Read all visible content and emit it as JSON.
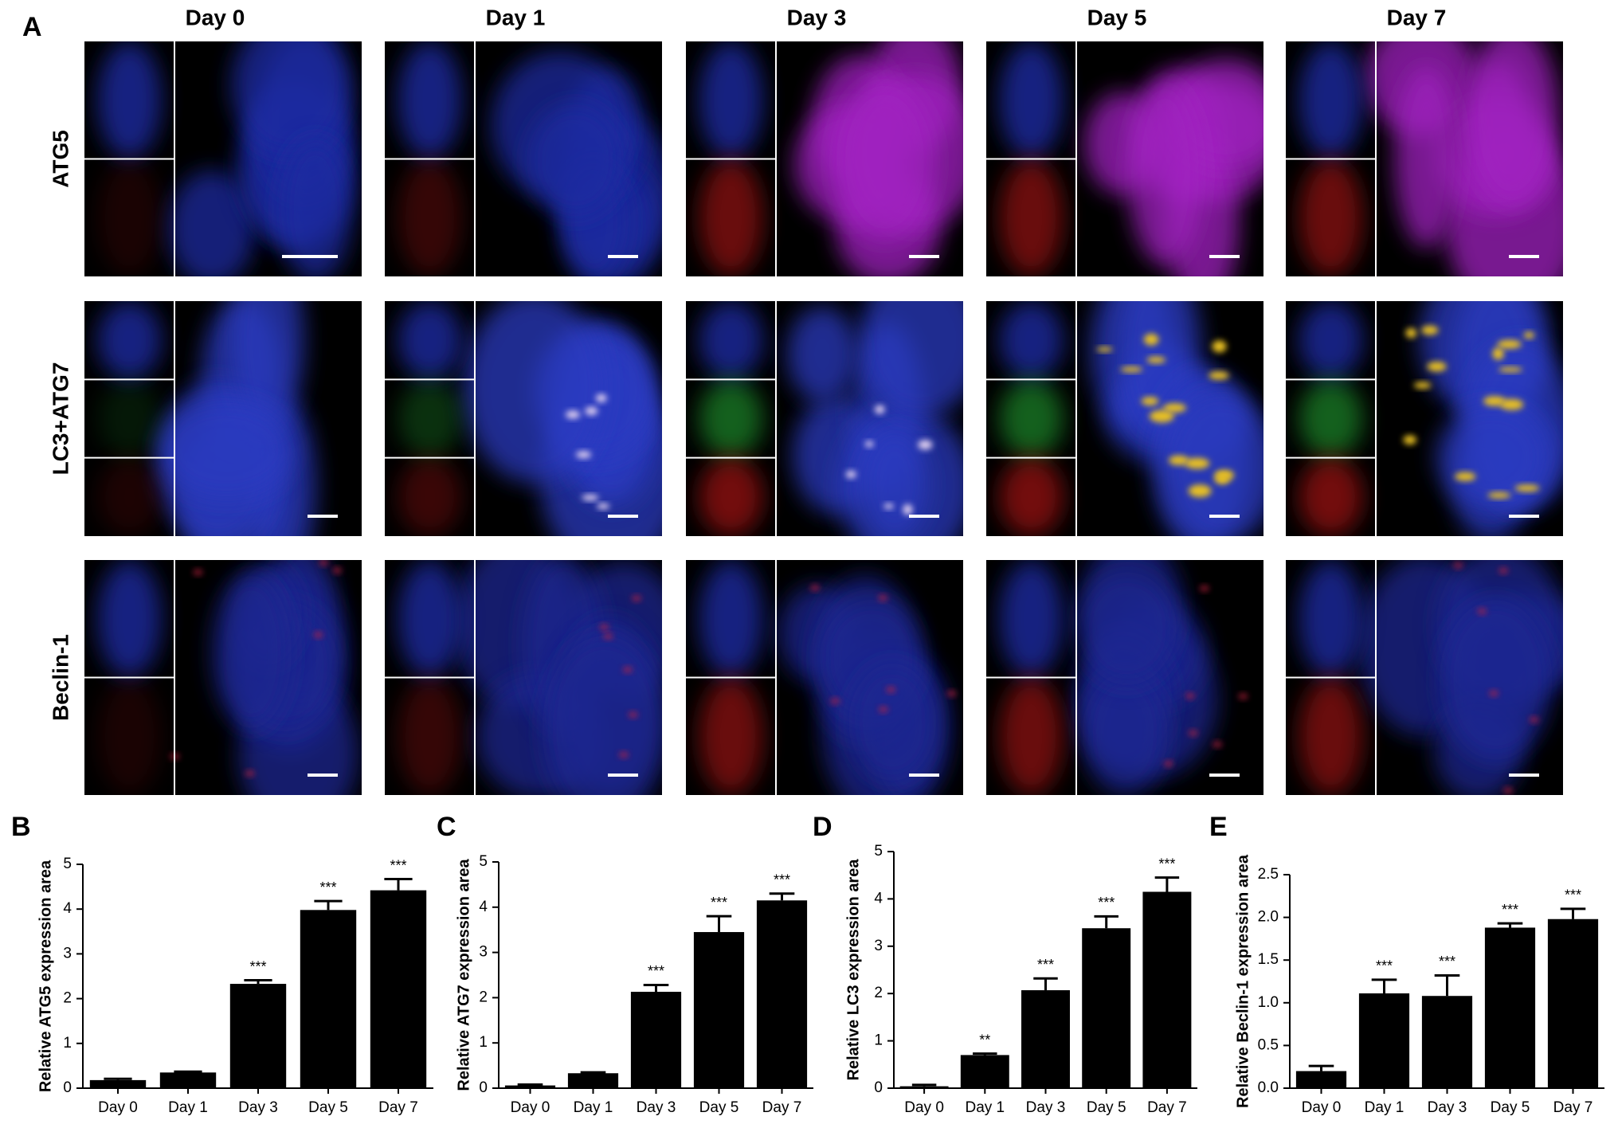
{
  "figure": {
    "panel": "A",
    "columns": [
      "Day 0",
      "Day 1",
      "Day 3",
      "Day 5",
      "Day 7"
    ],
    "rows": [
      "ATG5",
      "LC3+ATG7",
      "Beclin-1"
    ]
  },
  "chart_data": [
    {
      "type": "bar",
      "panel": "B",
      "y_label": "Relative ATG5 expression area",
      "color": "#000000",
      "categories": [
        "Day 0",
        "Day 1",
        "Day 3",
        "Day 5",
        "Day 7"
      ],
      "values": [
        0.18,
        0.35,
        2.33,
        3.98,
        4.42
      ],
      "errors": [
        0.03,
        0.02,
        0.08,
        0.2,
        0.25
      ],
      "significance": [
        null,
        null,
        "***",
        "***",
        "***"
      ],
      "ylim": [
        0,
        5
      ],
      "yticks": [
        0,
        1,
        2,
        3,
        4,
        5
      ]
    },
    {
      "type": "bar",
      "panel": "C",
      "y_label": "Relative ATG7 expression area",
      "color": "#000000",
      "categories": [
        "Day 0",
        "Day 1",
        "Day 3",
        "Day 5",
        "Day 7"
      ],
      "values": [
        0.06,
        0.33,
        2.13,
        3.45,
        4.15
      ],
      "errors": [
        0.02,
        0.02,
        0.15,
        0.35,
        0.15
      ],
      "significance": [
        null,
        null,
        "***",
        "***",
        "***"
      ],
      "ylim": [
        0,
        5
      ],
      "yticks": [
        0,
        1,
        2,
        3,
        4,
        5
      ]
    },
    {
      "type": "bar",
      "panel": "D",
      "y_label": "Relative LC3 expression area",
      "color": "#000000",
      "categories": [
        "Day 0",
        "Day 1",
        "Day 3",
        "Day 5",
        "Day 7"
      ],
      "values": [
        0.04,
        0.7,
        2.07,
        3.38,
        4.15
      ],
      "errors": [
        0.03,
        0.03,
        0.25,
        0.25,
        0.3
      ],
      "significance": [
        null,
        "**",
        "***",
        "***",
        "***"
      ],
      "ylim": [
        0,
        5
      ],
      "yticks": [
        0,
        1,
        2,
        3,
        4,
        5
      ]
    },
    {
      "type": "bar",
      "panel": "E",
      "y_label": "Relative Beclin-1 expression area",
      "color": "#000000",
      "categories": [
        "Day 0",
        "Day 1",
        "Day 3",
        "Day 5",
        "Day 7"
      ],
      "values": [
        0.2,
        1.11,
        1.08,
        1.88,
        1.98
      ],
      "errors": [
        0.06,
        0.16,
        0.24,
        0.05,
        0.12
      ],
      "significance": [
        null,
        "***",
        "***",
        "***",
        "***"
      ],
      "ylim": [
        0,
        2.5
      ],
      "yticks": [
        {
          "value": 0,
          "label": "0.0"
        },
        0.5,
        {
          "value": 1,
          "label": "1.0"
        },
        1.5,
        {
          "value": 2,
          "label": "2.0"
        },
        2.5
      ]
    }
  ]
}
